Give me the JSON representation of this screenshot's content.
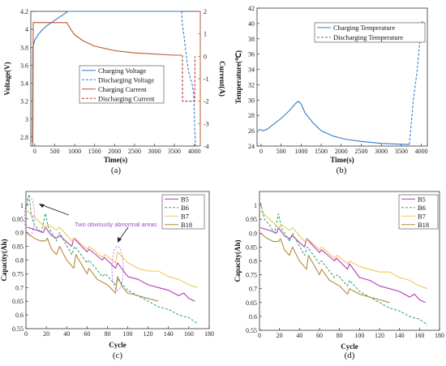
{
  "panel_labels": [
    "(a)",
    "(b)",
    "(c)",
    "(d)"
  ],
  "chart_data": [
    {
      "id": "a",
      "type": "line",
      "xlabel": "Time(s)",
      "ylabel": "Voltage(V)",
      "y2label": "Current(A)",
      "xlim": [
        -100,
        4150
      ],
      "ylim": [
        2.7,
        4.2
      ],
      "y2lim": [
        -4,
        2
      ],
      "xticks": [
        0,
        500,
        1000,
        1500,
        2000,
        2500,
        3000,
        3500,
        4000
      ],
      "yticks": [
        2.8,
        3,
        3.2,
        3.4,
        3.6,
        3.8,
        4,
        4.2
      ],
      "y2ticks": [
        -4,
        -3,
        -2,
        -1,
        0,
        1,
        2
      ],
      "legend_position": "center-right",
      "series": [
        {
          "name": "Charging Voltage",
          "axis": "left",
          "color": "#2f7ec8",
          "dash": "solid",
          "x": [
            -60,
            -50,
            0,
            100,
            200,
            300,
            400,
            500,
            600,
            700,
            800,
            830,
            860,
            3680
          ],
          "y": [
            2.74,
            3.8,
            3.88,
            3.95,
            4.0,
            4.04,
            4.07,
            4.1,
            4.13,
            4.16,
            4.19,
            4.2,
            4.2,
            4.2
          ]
        },
        {
          "name": "Discharging Voltage",
          "axis": "left",
          "color": "#2f7ec8",
          "dash": "dashed",
          "x": [
            3680,
            3700,
            3750,
            3800,
            3850,
            3900,
            3950,
            3980,
            4000,
            4010,
            4030
          ],
          "y": [
            4.2,
            4.05,
            3.9,
            3.7,
            3.55,
            3.45,
            3.38,
            3.3,
            3.1,
            2.9,
            2.7
          ]
        },
        {
          "name": "Charging Current",
          "axis": "right",
          "color": "#b85a28",
          "dash": "solid",
          "x": [
            -50,
            -40,
            0,
            100,
            300,
            500,
            700,
            800,
            820,
            900,
            1000,
            1200,
            1500,
            2000,
            2500,
            3000,
            3500,
            3680
          ],
          "y": [
            -4,
            1.5,
            1.5,
            1.5,
            1.5,
            1.5,
            1.5,
            1.5,
            1.45,
            1.2,
            0.95,
            0.7,
            0.45,
            0.25,
            0.15,
            0.1,
            0.05,
            0.05
          ]
        },
        {
          "name": "Discharging Current",
          "axis": "right",
          "color": "#c03030",
          "dash": "dashed",
          "x": [
            3700,
            3705,
            4000,
            4010,
            4015
          ],
          "y": [
            0.05,
            -2.0,
            -2.0,
            -2.0,
            0.0
          ]
        }
      ]
    },
    {
      "id": "b",
      "type": "line",
      "xlabel": "Time(s)",
      "ylabel": "Temperature(℃)",
      "xlim": [
        -100,
        4150
      ],
      "ylim": [
        24,
        42
      ],
      "xticks": [
        0,
        500,
        1000,
        1500,
        2000,
        2500,
        3000,
        3500,
        4000
      ],
      "yticks": [
        24,
        26,
        28,
        30,
        32,
        34,
        36,
        38,
        40,
        42
      ],
      "legend_position": "top-right",
      "series": [
        {
          "name": "Charging Temperature",
          "color": "#2f7ec8",
          "dash": "solid",
          "x": [
            -50,
            50,
            150,
            300,
            500,
            700,
            850,
            930,
            1000,
            1100,
            1300,
            1500,
            1800,
            2100,
            2500,
            3000,
            3400,
            3700
          ],
          "y": [
            26.2,
            26.0,
            26.2,
            26.8,
            27.6,
            28.6,
            29.5,
            29.85,
            29.5,
            28.3,
            27.0,
            26.0,
            25.3,
            24.9,
            24.6,
            24.35,
            24.25,
            24.2
          ]
        },
        {
          "name": "Discharging Temperature",
          "color": "#2f7ec8",
          "dash": "dashed",
          "x": [
            3700,
            3750,
            3800,
            3850,
            3900,
            3950,
            4000,
            4030
          ],
          "y": [
            24.2,
            27.0,
            30.0,
            32.0,
            34.0,
            37.0,
            39.0,
            40.4
          ]
        }
      ]
    },
    {
      "id": "c",
      "type": "line",
      "xlabel": "Cycle",
      "ylabel": "Capacity(Ah)",
      "xlim": [
        0,
        180
      ],
      "ylim": [
        0.55,
        1.05
      ],
      "xticks": [
        0,
        20,
        40,
        60,
        80,
        100,
        120,
        140,
        160,
        180
      ],
      "yticks": [
        0.55,
        0.6,
        0.65,
        0.7,
        0.75,
        0.8,
        0.85,
        0.9,
        0.95,
        1
      ],
      "legend_position": "top-right",
      "annotations": [
        {
          "text": "Two obviously abnormal areas"
        }
      ],
      "series": [
        {
          "name": "B5",
          "color": "#b03ab8",
          "dash": "solid",
          "x": [
            1,
            10,
            17,
            19,
            25,
            30,
            33,
            45,
            47,
            60,
            62,
            75,
            77,
            88,
            90,
            100,
            110,
            120,
            130,
            140,
            150,
            155,
            160,
            166
          ],
          "y": [
            0.92,
            0.91,
            0.9,
            0.92,
            0.89,
            0.88,
            0.89,
            0.85,
            0.88,
            0.83,
            0.84,
            0.8,
            0.81,
            0.77,
            0.79,
            0.74,
            0.73,
            0.71,
            0.7,
            0.69,
            0.67,
            0.68,
            0.66,
            0.65
          ]
        },
        {
          "name": "B6",
          "color": "#3aa874",
          "dash": "dashed",
          "x": [
            1,
            3,
            5,
            8,
            15,
            19,
            22,
            30,
            33,
            45,
            48,
            60,
            62,
            75,
            78,
            88,
            90,
            100,
            110,
            120,
            130,
            140,
            150,
            160,
            168
          ],
          "y": [
            1.0,
            1.04,
            0.97,
            0.93,
            0.9,
            0.97,
            0.92,
            0.87,
            0.9,
            0.82,
            0.85,
            0.79,
            0.8,
            0.74,
            0.75,
            0.71,
            0.73,
            0.69,
            0.67,
            0.65,
            0.63,
            0.62,
            0.6,
            0.59,
            0.57
          ]
        },
        {
          "name": "B7",
          "color": "#f0c85a",
          "dash": "solid",
          "x": [
            1,
            10,
            19,
            22,
            30,
            33,
            45,
            48,
            60,
            62,
            75,
            78,
            88,
            90,
            100,
            110,
            120,
            130,
            140,
            150,
            160,
            168
          ],
          "y": [
            0.98,
            0.95,
            0.92,
            0.93,
            0.91,
            0.92,
            0.87,
            0.88,
            0.84,
            0.85,
            0.81,
            0.82,
            0.79,
            0.83,
            0.79,
            0.77,
            0.76,
            0.76,
            0.74,
            0.73,
            0.71,
            0.7
          ]
        },
        {
          "name": "B18",
          "color": "#b58a3a",
          "dash": "solid",
          "x": [
            1,
            8,
            14,
            19,
            21,
            25,
            30,
            33,
            40,
            47,
            49,
            60,
            62,
            70,
            80,
            88,
            90,
            95,
            100,
            110,
            120,
            130
          ],
          "y": [
            0.9,
            0.88,
            0.87,
            0.87,
            0.88,
            0.84,
            0.82,
            0.85,
            0.8,
            0.77,
            0.82,
            0.75,
            0.77,
            0.73,
            0.71,
            0.68,
            0.74,
            0.7,
            0.68,
            0.67,
            0.66,
            0.65
          ]
        }
      ]
    },
    {
      "id": "d",
      "type": "line",
      "xlabel": "Cycle",
      "ylabel": "Capacity(Ah)",
      "xlim": [
        0,
        180
      ],
      "ylim": [
        0.55,
        1.05
      ],
      "xticks": [
        0,
        20,
        40,
        60,
        80,
        100,
        120,
        140,
        160,
        180
      ],
      "yticks": [
        0.55,
        0.6,
        0.65,
        0.7,
        0.75,
        0.8,
        0.85,
        0.9,
        0.95,
        1
      ],
      "legend_position": "top-right",
      "series": [
        {
          "name": "B5",
          "color": "#b03ab8",
          "dash": "solid",
          "x": [
            1,
            10,
            17,
            19,
            25,
            30,
            33,
            45,
            47,
            60,
            62,
            75,
            77,
            88,
            90,
            100,
            110,
            120,
            130,
            140,
            150,
            155,
            160,
            166
          ],
          "y": [
            0.92,
            0.91,
            0.9,
            0.92,
            0.89,
            0.88,
            0.89,
            0.85,
            0.88,
            0.83,
            0.84,
            0.8,
            0.81,
            0.77,
            0.79,
            0.74,
            0.73,
            0.71,
            0.7,
            0.69,
            0.67,
            0.68,
            0.66,
            0.65
          ]
        },
        {
          "name": "B6",
          "color": "#3aa874",
          "dash": "dashed",
          "x": [
            1,
            5,
            10,
            15,
            19,
            22,
            30,
            33,
            45,
            48,
            60,
            62,
            75,
            78,
            88,
            90,
            100,
            110,
            120,
            130,
            140,
            150,
            160,
            168
          ],
          "y": [
            1.01,
            0.95,
            0.93,
            0.9,
            0.97,
            0.92,
            0.87,
            0.9,
            0.82,
            0.85,
            0.79,
            0.8,
            0.74,
            0.75,
            0.71,
            0.73,
            0.69,
            0.67,
            0.65,
            0.63,
            0.62,
            0.6,
            0.59,
            0.57
          ]
        },
        {
          "name": "B7",
          "color": "#f0c85a",
          "dash": "solid",
          "x": [
            1,
            10,
            19,
            22,
            30,
            33,
            45,
            48,
            60,
            62,
            75,
            78,
            88,
            90,
            100,
            110,
            120,
            130,
            140,
            150,
            160,
            168
          ],
          "y": [
            0.98,
            0.95,
            0.92,
            0.93,
            0.91,
            0.92,
            0.87,
            0.88,
            0.84,
            0.85,
            0.81,
            0.82,
            0.79,
            0.8,
            0.78,
            0.77,
            0.76,
            0.76,
            0.74,
            0.73,
            0.71,
            0.7
          ]
        },
        {
          "name": "B18",
          "color": "#b58a3a",
          "dash": "solid",
          "x": [
            1,
            8,
            14,
            19,
            21,
            25,
            30,
            33,
            40,
            47,
            49,
            60,
            62,
            70,
            80,
            88,
            90,
            95,
            100,
            110,
            120,
            130
          ],
          "y": [
            0.9,
            0.88,
            0.87,
            0.87,
            0.88,
            0.84,
            0.82,
            0.85,
            0.8,
            0.77,
            0.82,
            0.75,
            0.77,
            0.73,
            0.71,
            0.68,
            0.7,
            0.69,
            0.68,
            0.67,
            0.66,
            0.65
          ]
        }
      ]
    }
  ]
}
